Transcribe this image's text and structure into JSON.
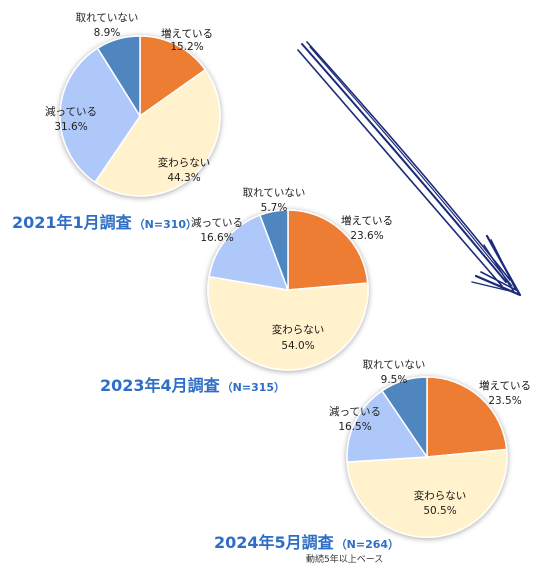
{
  "chart_data": [
    {
      "type": "pie",
      "title": "2021年1月調査",
      "n_label": "（N=310）",
      "slices": [
        {
          "label": "増えている",
          "value": 15.2,
          "value_label": "15.2%",
          "color": "#ed7d31"
        },
        {
          "label": "変わらない",
          "value": 44.3,
          "value_label": "44.3%",
          "color": "#fff2cc"
        },
        {
          "label": "減っている",
          "value": 31.6,
          "value_label": "31.6%",
          "color": "#adc8f9"
        },
        {
          "label": "取れていない",
          "value": 8.9,
          "value_label": "8.9%",
          "color": "#4f86c0"
        }
      ]
    },
    {
      "type": "pie",
      "title": "2023年4月調査",
      "n_label": "（N=315）",
      "slices": [
        {
          "label": "増えている",
          "value": 23.6,
          "value_label": "23.6%",
          "color": "#ed7d31"
        },
        {
          "label": "変わらない",
          "value": 54.0,
          "value_label": "54.0%",
          "color": "#fff2cc"
        },
        {
          "label": "減っている",
          "value": 16.6,
          "value_label": "16.6%",
          "color": "#adc8f9"
        },
        {
          "label": "取れていない",
          "value": 5.7,
          "value_label": "5.7%",
          "color": "#4f86c0"
        }
      ]
    },
    {
      "type": "pie",
      "title": "2024年5月調査",
      "n_label": "（N=264）",
      "footnote": "動続5年以上ベース",
      "slices": [
        {
          "label": "増えている",
          "value": 23.5,
          "value_label": "23.5%",
          "color": "#ed7d31"
        },
        {
          "label": "変わらない",
          "value": 50.5,
          "value_label": "50.5%",
          "color": "#fff2cc"
        },
        {
          "label": "減っている",
          "value": 16.5,
          "value_label": "16.5%",
          "color": "#adc8f9"
        },
        {
          "label": "取れていない",
          "value": 9.5,
          "value_label": "9.5%",
          "color": "#4f86c0"
        }
      ]
    }
  ],
  "colors": {
    "title": "#2e6ec5",
    "arrow": "#1c2a7a",
    "slice_border": "#ffffff"
  }
}
